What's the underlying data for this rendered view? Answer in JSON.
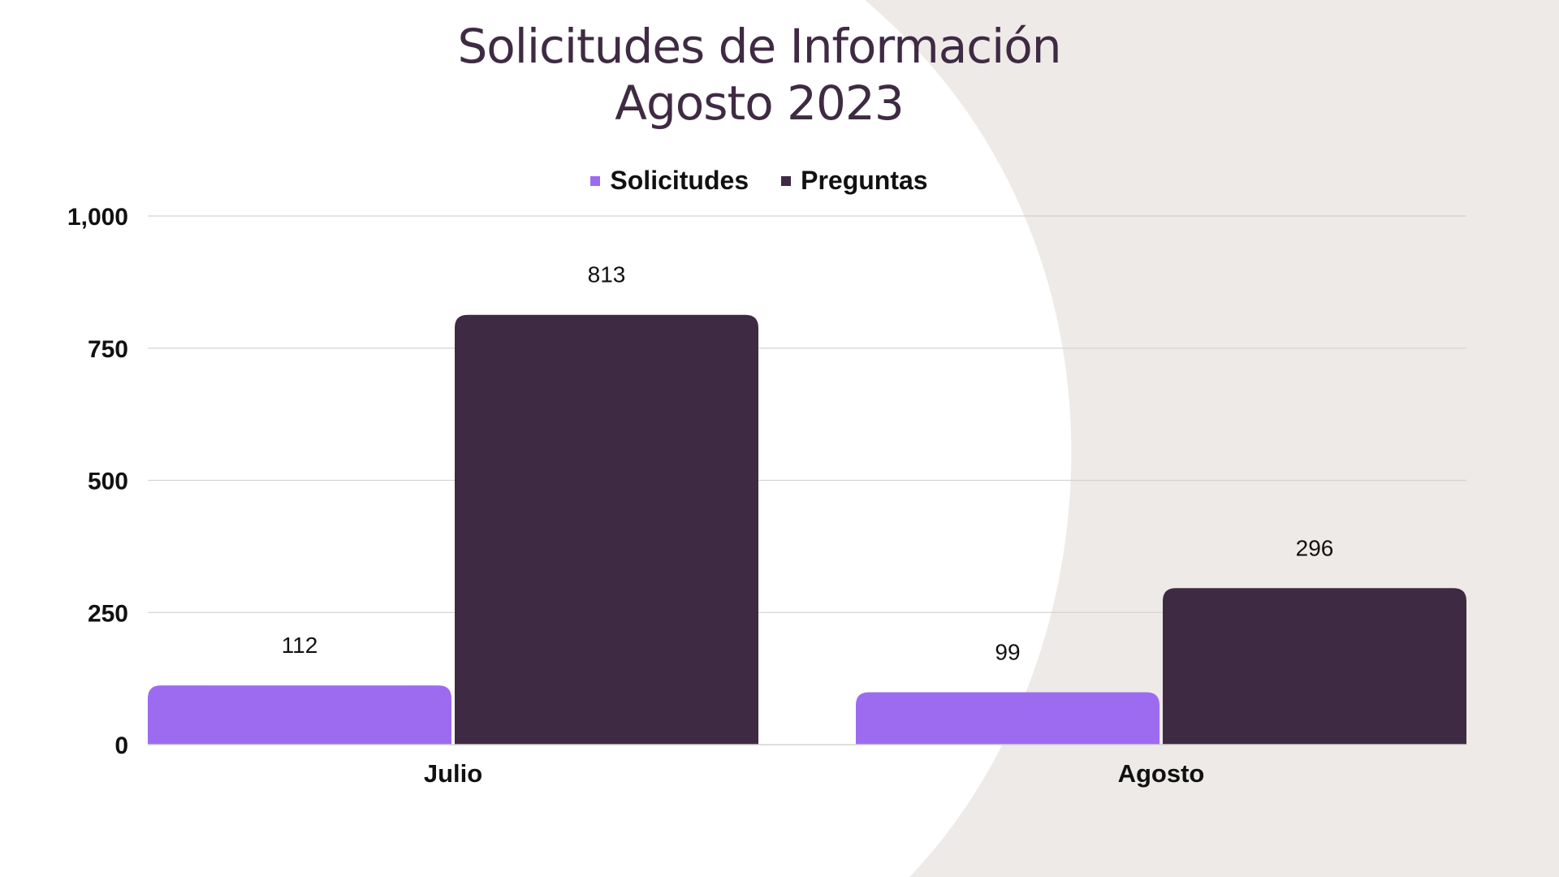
{
  "colors": {
    "background": "#ffffff",
    "backdrop": "#eeeae7",
    "title": "#3f2a43",
    "solicitudes": "#9d6bf0",
    "preguntas": "#3f2a43",
    "grid": "#d4d4d4"
  },
  "chart_data": {
    "type": "bar",
    "title_lines": [
      "Solicitudes de Información",
      "Agosto 2023"
    ],
    "categories": [
      "Julio",
      "Agosto"
    ],
    "series": [
      {
        "name": "Solicitudes",
        "values": [
          112,
          99
        ],
        "labels": [
          "112",
          "99"
        ]
      },
      {
        "name": "Preguntas",
        "values": [
          813,
          296
        ],
        "labels": [
          "813",
          "296"
        ]
      }
    ],
    "ylim": [
      0,
      1000
    ],
    "yticks": [
      0,
      250,
      500,
      750,
      1000
    ],
    "ytick_labels": [
      "0",
      "250",
      "500",
      "750",
      "1,000"
    ],
    "xlabel": "",
    "ylabel": "",
    "grid": true,
    "legend_position": "top-center"
  }
}
